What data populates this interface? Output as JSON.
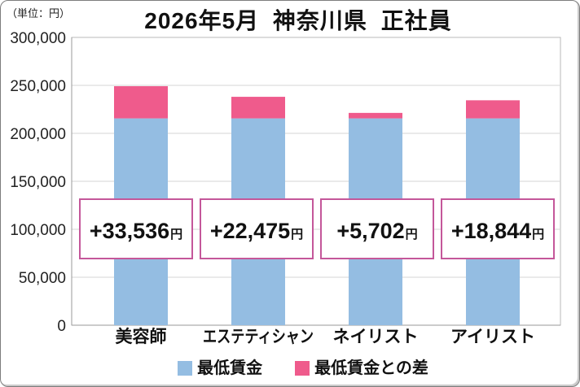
{
  "chart_data": {
    "type": "bar",
    "stacked": true,
    "title": "2026年5月 神奈川県 正社員",
    "unit": "（単位：円）",
    "categories": [
      "美容師",
      "エステティシャン",
      "ネイリスト",
      "アイリスト"
    ],
    "series": [
      {
        "name": "最低賃金",
        "values": [
          215600,
          215600,
          215600,
          215600
        ],
        "color": "#94BDE2"
      },
      {
        "name": "最低賃金との差",
        "values": [
          33536,
          22475,
          5702,
          18844
        ],
        "color": "#EF5B8C"
      }
    ],
    "data_labels": [
      "+33,536",
      "+22,475",
      "+5,702",
      "+18,844"
    ],
    "data_label_unit": "円",
    "data_label_border_color": "#C4579A",
    "ylim": [
      0,
      300000
    ],
    "yticks": [
      "0",
      "50,000",
      "100,000",
      "150,000",
      "200,000",
      "250,000",
      "300,000"
    ],
    "grid": true,
    "legend": "bottom"
  }
}
